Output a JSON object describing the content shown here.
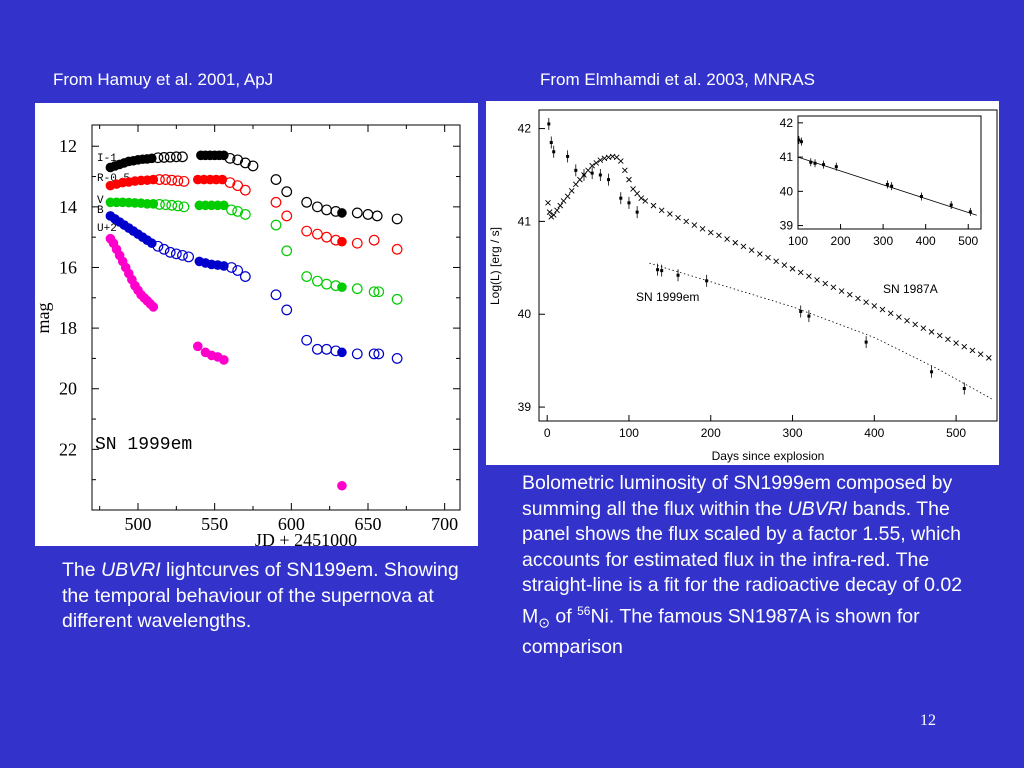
{
  "slide": {
    "left_caption": "From Hamuy et al. 2001, ApJ",
    "right_caption": "From Elmhamdi et al. 2003, MNRAS",
    "left_text": {
      "p1": "The ",
      "italic": "UBVRI",
      "p2": " lightcurves of SN199em. Showing the temporal behaviour of the supernova at different wavelengths."
    },
    "right_text": {
      "p1": "Bolometric luminosity of SN1999em composed by summing all the flux within the ",
      "italic": "UBVRI",
      "p2": " bands. The panel shows the flux scaled by a factor 1.55, which accounts for estimated flux in the infra-red. The straight-line is a fit for the radioactive decay of 0.02 M",
      "sun": "⊙",
      "p3": " of ",
      "sup": "56",
      "p4": "Ni. The famous SN1987A is shown for comparison"
    },
    "page_number": "12"
  },
  "chart_data": [
    {
      "type": "scatter",
      "title": "",
      "xlabel": "JD + 2451000",
      "ylabel": "mag",
      "xlim": [
        470,
        710
      ],
      "ylim": [
        24,
        11.3
      ],
      "y_inverted": true,
      "xticks": [
        "500",
        "550",
        "600",
        "650",
        "700"
      ],
      "yticks": [
        "12",
        "14",
        "16",
        "18",
        "20",
        "22"
      ],
      "annotation": "SN 1999em",
      "band_labels": [
        "I-1",
        "R-0.5",
        "V",
        "B",
        "U+2"
      ],
      "colors": {
        "I": "#000000",
        "R": "#ff0000",
        "V": "#00cc00",
        "B": "#0000cc",
        "U": "#ff00cc"
      },
      "series": [
        {
          "band": "I",
          "color": "#000000",
          "filled": [
            [
              482,
              12.7
            ],
            [
              485,
              12.65
            ],
            [
              488,
              12.6
            ],
            [
              491,
              12.55
            ],
            [
              494,
              12.5
            ],
            [
              497,
              12.48
            ],
            [
              500,
              12.45
            ],
            [
              503,
              12.43
            ],
            [
              506,
              12.42
            ],
            [
              509,
              12.4
            ],
            [
              541,
              12.3
            ],
            [
              544,
              12.3
            ],
            [
              547,
              12.3
            ],
            [
              550,
              12.3
            ],
            [
              553,
              12.3
            ],
            [
              556,
              12.3
            ],
            [
              633,
              14.2
            ]
          ],
          "open": [
            [
              513,
              12.38
            ],
            [
              517,
              12.37
            ],
            [
              521,
              12.36
            ],
            [
              525,
              12.35
            ],
            [
              529,
              12.35
            ],
            [
              560,
              12.4
            ],
            [
              565,
              12.45
            ],
            [
              570,
              12.55
            ],
            [
              575,
              12.65
            ],
            [
              590,
              13.1
            ],
            [
              597,
              13.5
            ],
            [
              610,
              13.85
            ],
            [
              617,
              14.0
            ],
            [
              623,
              14.1
            ],
            [
              629,
              14.15
            ],
            [
              643,
              14.2
            ],
            [
              650,
              14.25
            ],
            [
              656,
              14.3
            ],
            [
              669,
              14.4
            ]
          ]
        },
        {
          "band": "R",
          "color": "#ff0000",
          "filled": [
            [
              482,
              13.3
            ],
            [
              486,
              13.25
            ],
            [
              490,
              13.2
            ],
            [
              494,
              13.18
            ],
            [
              498,
              13.15
            ],
            [
              502,
              13.13
            ],
            [
              506,
              13.12
            ],
            [
              510,
              13.1
            ],
            [
              539,
              13.1
            ],
            [
              543,
              13.1
            ],
            [
              547,
              13.1
            ],
            [
              551,
              13.1
            ],
            [
              555,
              13.1
            ],
            [
              633,
              15.15
            ]
          ],
          "open": [
            [
              514,
              13.1
            ],
            [
              518,
              13.1
            ],
            [
              522,
              13.12
            ],
            [
              526,
              13.14
            ],
            [
              530,
              13.16
            ],
            [
              560,
              13.2
            ],
            [
              565,
              13.3
            ],
            [
              570,
              13.45
            ],
            [
              590,
              13.85
            ],
            [
              597,
              14.3
            ],
            [
              610,
              14.8
            ],
            [
              617,
              14.9
            ],
            [
              623,
              15.0
            ],
            [
              629,
              15.1
            ],
            [
              643,
              15.2
            ],
            [
              654,
              15.1
            ],
            [
              669,
              15.4
            ]
          ]
        },
        {
          "band": "V",
          "color": "#00cc00",
          "filled": [
            [
              482,
              13.85
            ],
            [
              486,
              13.85
            ],
            [
              490,
              13.85
            ],
            [
              494,
              13.86
            ],
            [
              498,
              13.87
            ],
            [
              502,
              13.88
            ],
            [
              506,
              13.9
            ],
            [
              510,
              13.9
            ],
            [
              540,
              13.95
            ],
            [
              544,
              13.95
            ],
            [
              548,
              13.95
            ],
            [
              552,
              13.95
            ],
            [
              556,
              13.95
            ],
            [
              633,
              16.65
            ]
          ],
          "open": [
            [
              514,
              13.92
            ],
            [
              518,
              13.93
            ],
            [
              522,
              13.95
            ],
            [
              526,
              13.97
            ],
            [
              530,
              14.0
            ],
            [
              561,
              14.1
            ],
            [
              565,
              14.15
            ],
            [
              570,
              14.25
            ],
            [
              590,
              14.6
            ],
            [
              597,
              15.45
            ],
            [
              610,
              16.3
            ],
            [
              617,
              16.45
            ],
            [
              623,
              16.55
            ],
            [
              629,
              16.6
            ],
            [
              643,
              16.7
            ],
            [
              654,
              16.8
            ],
            [
              657,
              16.8
            ],
            [
              669,
              17.05
            ]
          ]
        },
        {
          "band": "B",
          "color": "#0000cc",
          "filled": [
            [
              482,
              14.3
            ],
            [
              485,
              14.4
            ],
            [
              488,
              14.5
            ],
            [
              491,
              14.6
            ],
            [
              494,
              14.7
            ],
            [
              497,
              14.8
            ],
            [
              500,
              14.9
            ],
            [
              503,
              15.0
            ],
            [
              506,
              15.1
            ],
            [
              509,
              15.2
            ],
            [
              540,
              15.8
            ],
            [
              544,
              15.85
            ],
            [
              548,
              15.9
            ],
            [
              552,
              15.92
            ],
            [
              556,
              15.95
            ],
            [
              633,
              18.8
            ]
          ],
          "open": [
            [
              513,
              15.3
            ],
            [
              517,
              15.4
            ],
            [
              521,
              15.5
            ],
            [
              525,
              15.55
            ],
            [
              529,
              15.6
            ],
            [
              533,
              15.65
            ],
            [
              561,
              16.0
            ],
            [
              565,
              16.1
            ],
            [
              570,
              16.3
            ],
            [
              590,
              16.9
            ],
            [
              597,
              17.4
            ],
            [
              610,
              18.4
            ],
            [
              617,
              18.7
            ],
            [
              623,
              18.7
            ],
            [
              629,
              18.75
            ],
            [
              643,
              18.85
            ],
            [
              654,
              18.85
            ],
            [
              657,
              18.85
            ],
            [
              669,
              19.0
            ]
          ]
        },
        {
          "band": "U",
          "color": "#ff00cc",
          "filled": [
            [
              482,
              15.05
            ],
            [
              484,
              15.2
            ],
            [
              486,
              15.4
            ],
            [
              488,
              15.6
            ],
            [
              490,
              15.8
            ],
            [
              492,
              16.0
            ],
            [
              494,
              16.2
            ],
            [
              496,
              16.4
            ],
            [
              498,
              16.6
            ],
            [
              500,
              16.75
            ],
            [
              502,
              16.9
            ],
            [
              504,
              17.0
            ],
            [
              506,
              17.1
            ],
            [
              508,
              17.2
            ],
            [
              510,
              17.3
            ],
            [
              539,
              18.6
            ],
            [
              544,
              18.8
            ],
            [
              548,
              18.9
            ],
            [
              552,
              18.95
            ],
            [
              556,
              19.05
            ],
            [
              633,
              23.2
            ]
          ],
          "open": []
        }
      ]
    },
    {
      "type": "scatter",
      "title": "",
      "xlabel": "Days since explosion",
      "ylabel": "Log(L) [erg / s]",
      "xlim": [
        -10,
        550
      ],
      "ylim": [
        38.85,
        42.2
      ],
      "xticks": [
        "0",
        "100",
        "200",
        "300",
        "400",
        "500"
      ],
      "yticks": [
        "39",
        "40",
        "41",
        "42"
      ],
      "annotations": [
        "SN 1999em",
        "SN 1987A"
      ],
      "sn1987a": [
        [
          1,
          41.2
        ],
        [
          3,
          41.1
        ],
        [
          5,
          41.05
        ],
        [
          8,
          41.07
        ],
        [
          12,
          41.12
        ],
        [
          16,
          41.17
        ],
        [
          20,
          41.22
        ],
        [
          25,
          41.27
        ],
        [
          30,
          41.33
        ],
        [
          35,
          41.4
        ],
        [
          40,
          41.45
        ],
        [
          45,
          41.5
        ],
        [
          50,
          41.55
        ],
        [
          55,
          41.6
        ],
        [
          60,
          41.63
        ],
        [
          65,
          41.66
        ],
        [
          70,
          41.68
        ],
        [
          75,
          41.69
        ],
        [
          80,
          41.7
        ],
        [
          85,
          41.69
        ],
        [
          90,
          41.65
        ],
        [
          95,
          41.55
        ],
        [
          100,
          41.45
        ],
        [
          105,
          41.35
        ],
        [
          110,
          41.3
        ],
        [
          115,
          41.25
        ],
        [
          120,
          41.22
        ],
        [
          130,
          41.17
        ],
        [
          140,
          41.12
        ],
        [
          150,
          41.08
        ],
        [
          160,
          41.04
        ],
        [
          170,
          41.0
        ],
        [
          180,
          40.96
        ],
        [
          190,
          40.92
        ],
        [
          200,
          40.88
        ],
        [
          210,
          40.85
        ],
        [
          220,
          40.81
        ],
        [
          230,
          40.77
        ],
        [
          240,
          40.73
        ],
        [
          250,
          40.69
        ],
        [
          260,
          40.65
        ],
        [
          270,
          40.61
        ],
        [
          280,
          40.57
        ],
        [
          290,
          40.53
        ],
        [
          300,
          40.49
        ],
        [
          310,
          40.45
        ],
        [
          320,
          40.41
        ],
        [
          330,
          40.37
        ],
        [
          340,
          40.33
        ],
        [
          350,
          40.29
        ],
        [
          360,
          40.25
        ],
        [
          370,
          40.21
        ],
        [
          380,
          40.17
        ],
        [
          390,
          40.13
        ],
        [
          400,
          40.09
        ],
        [
          410,
          40.05
        ],
        [
          420,
          40.01
        ],
        [
          430,
          39.97
        ],
        [
          440,
          39.93
        ],
        [
          450,
          39.89
        ],
        [
          460,
          39.85
        ],
        [
          470,
          39.81
        ],
        [
          480,
          39.77
        ],
        [
          490,
          39.73
        ],
        [
          500,
          39.69
        ],
        [
          510,
          39.65
        ],
        [
          520,
          39.61
        ],
        [
          530,
          39.57
        ],
        [
          540,
          39.53
        ]
      ],
      "sn1999em_early": [
        [
          2,
          42.05
        ],
        [
          5,
          41.85
        ],
        [
          8,
          41.75
        ],
        [
          25,
          41.7
        ],
        [
          35,
          41.55
        ],
        [
          45,
          41.5
        ],
        [
          55,
          41.52
        ],
        [
          65,
          41.5
        ],
        [
          75,
          41.45
        ],
        [
          90,
          41.25
        ],
        [
          100,
          41.2
        ],
        [
          110,
          41.1
        ]
      ],
      "sn1999em_tail": [
        [
          135,
          40.48
        ],
        [
          140,
          40.47
        ],
        [
          160,
          40.42
        ],
        [
          195,
          40.36
        ],
        [
          310,
          40.03
        ],
        [
          320,
          39.98
        ],
        [
          390,
          39.7
        ],
        [
          470,
          39.38
        ],
        [
          510,
          39.2
        ]
      ],
      "tail_fit": [
        [
          125,
          40.55
        ],
        [
          200,
          40.35
        ],
        [
          300,
          40.08
        ],
        [
          400,
          39.75
        ],
        [
          480,
          39.4
        ],
        [
          545,
          39.08
        ]
      ],
      "inset": {
        "xlim": [
          100,
          530
        ],
        "ylim": [
          38.9,
          42.2
        ],
        "xticks": [
          "100",
          "200",
          "300",
          "400",
          "500"
        ],
        "yticks": [
          "39",
          "40",
          "41",
          "42"
        ],
        "points": [
          [
            102,
            41.5
          ],
          [
            108,
            41.45
          ],
          [
            130,
            40.85
          ],
          [
            140,
            40.82
          ],
          [
            160,
            40.78
          ],
          [
            190,
            40.72
          ],
          [
            310,
            40.2
          ],
          [
            320,
            40.15
          ],
          [
            390,
            39.85
          ],
          [
            460,
            39.6
          ],
          [
            505,
            39.4
          ]
        ],
        "fit": [
          [
            100,
            41.0
          ],
          [
            520,
            39.3
          ]
        ]
      }
    }
  ]
}
